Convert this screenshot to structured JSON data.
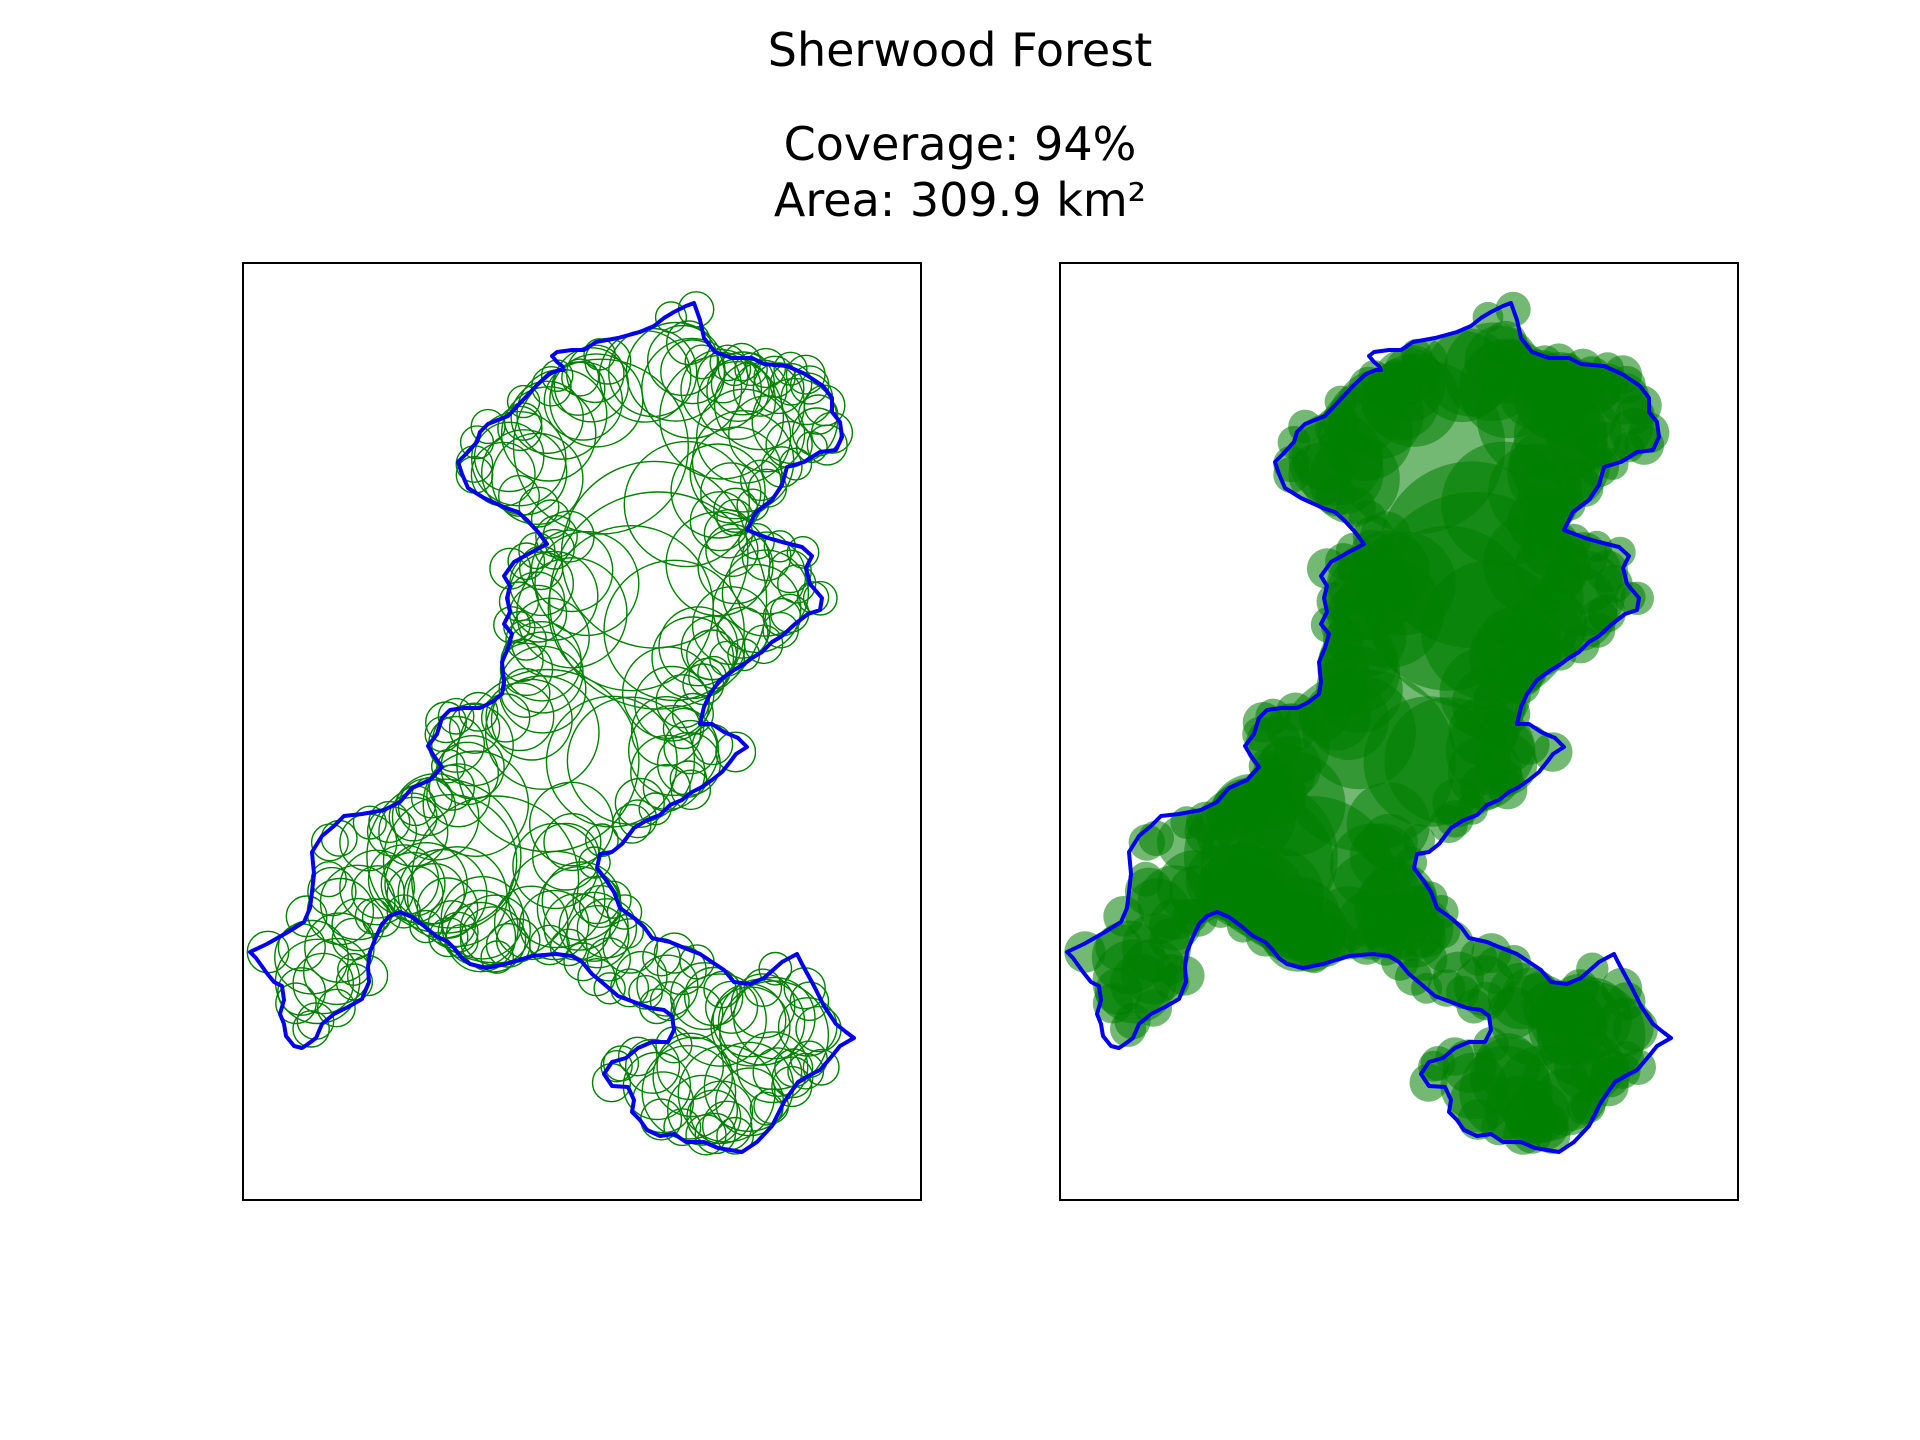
{
  "header": {
    "title": "Sherwood Forest",
    "coverage_line": "Coverage: 94%",
    "area_line": "Area: 309.9 km²"
  },
  "colors": {
    "boundary": "#0000ee",
    "circle": "#008000",
    "frame": "#000000"
  },
  "panels": [
    {
      "style": "outline"
    },
    {
      "style": "filled"
    }
  ]
}
